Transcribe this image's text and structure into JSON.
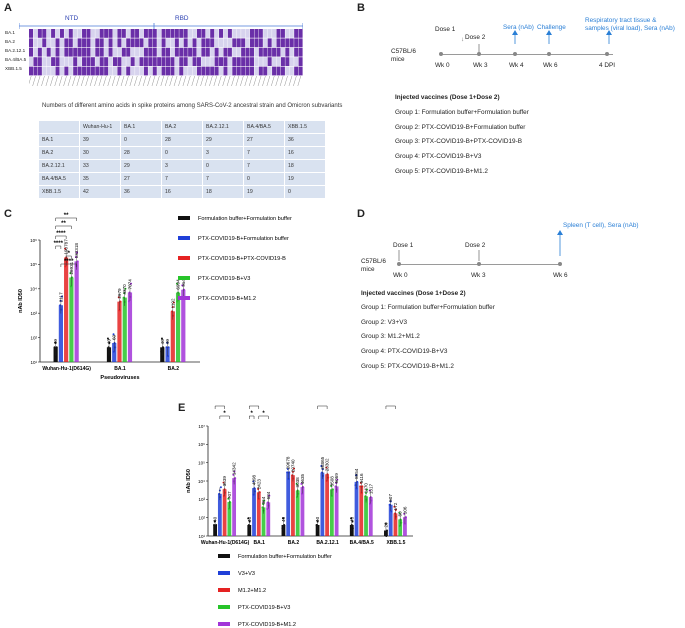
{
  "panels": {
    "A": "A",
    "B": "B",
    "C": "C",
    "D": "D",
    "E": "E"
  },
  "seq": {
    "ntd": "NTD",
    "rbd": "RBD",
    "rows": [
      "BA.1",
      "BA.2",
      "BA.2.12.1",
      "BA.4/BA.5",
      "XBB.1.5"
    ],
    "caption": "Numbers of different amino acids in spike proteins among SARS-CoV-2 ancestral strain and Omicron subvariants"
  },
  "table": {
    "header": [
      "",
      "Wuhan-Hu-1",
      "BA.1",
      "BA.2",
      "BA.2.12.1",
      "BA.4/BA.5",
      "XBB.1.5"
    ],
    "rows": [
      [
        "BA.1",
        "39",
        "0",
        "28",
        "29",
        "27",
        "36"
      ],
      [
        "BA.2",
        "30",
        "28",
        "0",
        "3",
        "7",
        "16"
      ],
      [
        "BA.2.12.1",
        "33",
        "29",
        "3",
        "0",
        "7",
        "18"
      ],
      [
        "BA.4/BA.5",
        "35",
        "27",
        "7",
        "7",
        "0",
        "19"
      ],
      [
        "XBB.1.5",
        "42",
        "36",
        "16",
        "18",
        "19",
        "0"
      ]
    ]
  },
  "B": {
    "mice": "C57BL/6\nmice",
    "mice1": "C57BL/6",
    "mice2": "mice",
    "dose1": "Dose 1",
    "dose2": "Dose 2",
    "sera": "Sera (nAb)",
    "challenge": "Challenge",
    "resp1": "Respiratory tract tissue &",
    "resp2": "samples (viral load), Sera (nAb)",
    "wk0": "Wk 0",
    "wk3": "Wk 3",
    "wk4": "Wk 4",
    "wk6": "Wk 6",
    "dpi": "4 DPI",
    "title": "Injected vaccines (Dose 1+Dose 2)",
    "groups": [
      "Group 1: Formulation buffer+Formulation buffer",
      "Group 2: PTX-COVID19-B+Formulation buffer",
      "Group 3: PTX-COVID19-B+PTX-COVID19-B",
      "Group 4: PTX-COVID19-B+V3",
      "Group 5: PTX-COVID19-B+M1.2"
    ]
  },
  "D": {
    "mice1": "C57BL/6",
    "mice2": "mice",
    "dose1": "Dose 1",
    "dose2": "Dose 2",
    "spleen": "Spleen (T cell), Sera (nAb)",
    "wk0": "Wk 0",
    "wk3": "Wk 3",
    "wk6": "Wk 6",
    "title": "Injected vaccines (Dose 1+Dose 2)",
    "groups": [
      "Group 1: Formulation buffer+Formulation buffer",
      "Group 2: V3+V3",
      "Group 3: M1.2+M1.2",
      "Group 4: PTX-COVID19-B+V3",
      "Group 5: PTX-COVID19-B+M1.2"
    ]
  },
  "colors": {
    "black": "#111111",
    "blue": "#1f3fd8",
    "red": "#e52222",
    "green": "#27c42a",
    "purple": "#a235d8",
    "accent": "#2a7fd6"
  },
  "chart_data": [
    {
      "type": "bar",
      "panel": "C",
      "ylabel": "nAb ID50",
      "xlabel": "Pseudoviruses",
      "log_scale": true,
      "ylim": [
        10,
        1000000
      ],
      "categories": [
        "Wuhan-Hu-1(D614G)",
        "BA.1",
        "BA.2"
      ],
      "series": [
        {
          "name": "Formulation buffer+Formulation buffer",
          "values": [
            40,
            40,
            40
          ],
          "labels": [
            "40",
            "40",
            "40"
          ]
        },
        {
          "name": "PTX-COVID19-B+Formulation buffer",
          "values": [
            2117,
            60,
            40
          ],
          "labels": [
            "2117",
            "60",
            "40"
          ]
        },
        {
          "name": "PTX-COVID19-B+PTX-COVID19-B",
          "values": [
            190787,
            2979,
            1192
          ],
          "labels": [
            "190787",
            "2979",
            "1192"
          ]
        },
        {
          "name": "PTX-COVID19-B+V3",
          "values": [
            28931,
            4370,
            6994
          ],
          "labels": [
            "28931",
            "4370",
            "6994"
          ]
        },
        {
          "name": "PTX-COVID19-B+M1.2",
          "values": [
            133318,
            7074,
            9143
          ],
          "labels": [
            "133318",
            "7074",
            "9143"
          ]
        }
      ],
      "significance": [
        "**",
        "**",
        "****",
        "****",
        "*",
        "****"
      ]
    },
    {
      "type": "bar",
      "panel": "E",
      "ylabel": "nAb ID50",
      "log_scale": true,
      "ylim": [
        10,
        10000000
      ],
      "categories": [
        "Wuhan-Hu-1(D614G)",
        "BA.1",
        "BA.2",
        "BA.2.12.1",
        "BA.4/BA.5",
        "XBB.1.5"
      ],
      "series": [
        {
          "name": "Formulation buffer+Formulation buffer",
          "values": [
            40,
            40,
            40,
            40,
            40,
            20
          ],
          "labels": [
            "40",
            "40",
            "40",
            "40",
            "40",
            "20"
          ]
        },
        {
          "name": "V3+V3",
          "values": [
            2000,
            4098,
            29678,
            28865,
            8954,
            507
          ],
          "labels": [
            "",
            "4098",
            "29678",
            "28865",
            "8954",
            "507"
          ]
        },
        {
          "name": "M1.2+M1.2",
          "values": [
            3539,
            2423,
            20740,
            23302,
            5116,
            172
          ],
          "labels": [
            "3539",
            "2423",
            "20740",
            "23302",
            "5116",
            "172"
          ]
        },
        {
          "name": "PTX-COVID19-B+V3",
          "values": [
            707,
            364,
            3038,
            3508,
            1470,
            80
          ],
          "labels": [
            "707",
            "364",
            "3038",
            "3508",
            "1470",
            "80"
          ]
        },
        {
          "name": "PTX-COVID19-B+M1.2",
          "values": [
            14342,
            684,
            4635,
            5069,
            1317,
            106
          ],
          "labels": [
            "14342",
            "684",
            "4635",
            "5069",
            "1317",
            "106"
          ]
        }
      ],
      "significance": [
        "*",
        "*",
        "*",
        "*",
        "*",
        "*",
        "**"
      ]
    }
  ]
}
